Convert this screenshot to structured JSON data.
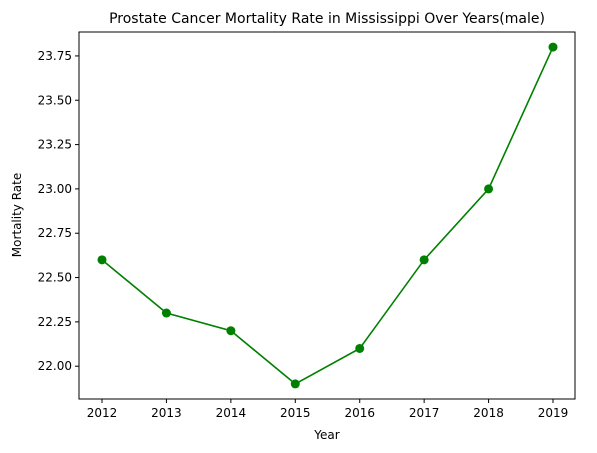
{
  "chart_data": {
    "type": "line",
    "title": "Prostate Cancer Mortality Rate in Mississippi Over Years(male)",
    "xlabel": "Year",
    "ylabel": "Mortality Rate",
    "x": [
      "2012",
      "2013",
      "2014",
      "2015",
      "2016",
      "2017",
      "2018",
      "2019"
    ],
    "series": [
      {
        "values": [
          22.6,
          22.3,
          22.2,
          21.9,
          22.1,
          22.6,
          23.0,
          23.8
        ],
        "color": "#008000",
        "marker": "circle"
      }
    ],
    "ylim": [
      21.815,
      23.885
    ],
    "yticks": [
      "22.00",
      "22.25",
      "22.50",
      "22.75",
      "23.00",
      "23.25",
      "23.50",
      "23.75"
    ],
    "grid": false,
    "legend": "none"
  }
}
